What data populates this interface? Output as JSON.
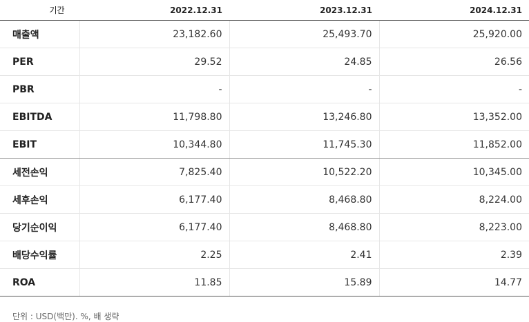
{
  "table": {
    "header": [
      "기간",
      "2022.12.31",
      "2023.12.31",
      "2024.12.31"
    ],
    "rows": [
      [
        "매출액",
        "23,182.60",
        "25,493.70",
        "25,920.00"
      ],
      [
        "PER",
        "29.52",
        "24.85",
        "26.56"
      ],
      [
        "PBR",
        "-",
        "-",
        "-"
      ],
      [
        "EBITDA",
        "11,798.80",
        "13,246.80",
        "13,352.00"
      ],
      [
        "EBIT",
        "10,344.80",
        "11,745.30",
        "11,852.00"
      ],
      [
        "세전손익",
        "7,825.40",
        "10,522.20",
        "10,345.00"
      ],
      [
        "세후손익",
        "6,177.40",
        "8,468.80",
        "8,224.00"
      ],
      [
        "당기순이익",
        "6,177.40",
        "8,468.80",
        "8,223.00"
      ],
      [
        "배당수익률",
        "2.25",
        "2.41",
        "2.39"
      ],
      [
        "ROA",
        "11.85",
        "15.89",
        "14.77"
      ]
    ]
  },
  "footnote": "단위 : USD(백만). %, 배 생략"
}
